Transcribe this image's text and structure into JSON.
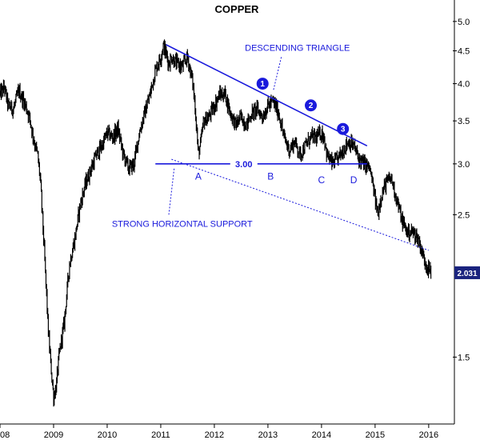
{
  "chart_data": {
    "type": "line",
    "title": "COPPER",
    "y_scale": "log",
    "ylim": [
      1.18,
      5.4
    ],
    "xlim": [
      2008.0,
      2016.45
    ],
    "y_ticks": [
      "5.0",
      "4.5",
      "4.0",
      "3.5",
      "3.0",
      "2.5",
      "1.5"
    ],
    "x_ticks": [
      "08",
      "2009",
      "2010",
      "2011",
      "2012",
      "2013",
      "2014",
      "2015",
      "2016"
    ],
    "x_tick_values": [
      2008.0,
      2009.0,
      2010.0,
      2011.0,
      2012.0,
      2013.0,
      2014.0,
      2015.0,
      2016.0
    ],
    "y_tick_values": [
      5.0,
      4.5,
      4.0,
      3.5,
      3.0,
      2.5,
      1.5
    ],
    "grid": false,
    "series": [
      {
        "color": "#000000",
        "x": [
          2008.0,
          2008.08,
          2008.15,
          2008.25,
          2008.35,
          2008.45,
          2008.55,
          2008.62,
          2008.7,
          2008.75,
          2008.8,
          2008.85,
          2008.9,
          2008.95,
          2009.0,
          2009.05,
          2009.1,
          2009.15,
          2009.2,
          2009.3,
          2009.4,
          2009.5,
          2009.6,
          2009.7,
          2009.8,
          2009.9,
          2010.0,
          2010.1,
          2010.2,
          2010.3,
          2010.4,
          2010.5,
          2010.6,
          2010.7,
          2010.8,
          2010.9,
          2011.0,
          2011.05,
          2011.1,
          2011.15,
          2011.2,
          2011.3,
          2011.4,
          2011.5,
          2011.55,
          2011.6,
          2011.65,
          2011.7,
          2011.75,
          2011.8,
          2011.9,
          2012.0,
          2012.1,
          2012.2,
          2012.3,
          2012.4,
          2012.5,
          2012.6,
          2012.7,
          2012.8,
          2012.9,
          2013.0,
          2013.1,
          2013.2,
          2013.3,
          2013.4,
          2013.5,
          2013.6,
          2013.7,
          2013.8,
          2013.9,
          2014.0,
          2014.05,
          2014.1,
          2014.2,
          2014.3,
          2014.4,
          2014.5,
          2014.6,
          2014.7,
          2014.8,
          2014.9,
          2015.0,
          2015.05,
          2015.1,
          2015.2,
          2015.3,
          2015.4,
          2015.5,
          2015.6,
          2015.7,
          2015.8,
          2015.9,
          2016.0,
          2016.05
        ],
        "y": [
          3.85,
          3.95,
          3.7,
          3.65,
          3.9,
          3.75,
          3.55,
          3.3,
          3.1,
          2.85,
          2.4,
          2.0,
          1.65,
          1.45,
          1.3,
          1.35,
          1.5,
          1.6,
          1.7,
          2.1,
          2.3,
          2.6,
          2.8,
          2.95,
          3.1,
          3.2,
          3.35,
          3.3,
          3.4,
          3.1,
          2.95,
          3.0,
          3.35,
          3.6,
          3.85,
          4.2,
          4.4,
          4.6,
          4.45,
          4.3,
          4.4,
          4.3,
          4.25,
          4.4,
          4.2,
          4.0,
          3.6,
          3.1,
          3.25,
          3.5,
          3.55,
          3.7,
          3.85,
          3.85,
          3.6,
          3.45,
          3.55,
          3.45,
          3.6,
          3.65,
          3.55,
          3.7,
          3.75,
          3.6,
          3.3,
          3.15,
          3.25,
          3.1,
          3.2,
          3.3,
          3.3,
          3.35,
          3.3,
          3.1,
          3.0,
          3.05,
          3.15,
          3.25,
          3.2,
          3.05,
          3.0,
          2.95,
          2.65,
          2.5,
          2.65,
          2.8,
          2.85,
          2.65,
          2.45,
          2.35,
          2.35,
          2.3,
          2.15,
          2.05,
          2.03
        ]
      }
    ],
    "last_value_label": "2.031",
    "annotations": [
      {
        "text": "DESCENDING TRIANGLE",
        "x": 2013.55,
        "y": 4.55
      },
      {
        "text": "STRONG HORIZONTAL SUPPORT",
        "x": 2011.4,
        "y": 2.42
      },
      {
        "text": "3.00",
        "x": 2012.55,
        "y": 3.0
      },
      {
        "text": "A",
        "x": 2011.7,
        "y": 2.87
      },
      {
        "text": "B",
        "x": 2013.05,
        "y": 2.87
      },
      {
        "text": "C",
        "x": 2014.0,
        "y": 2.83
      },
      {
        "text": "D",
        "x": 2014.6,
        "y": 2.83
      }
    ],
    "numbered_markers": [
      {
        "label": "1",
        "x": 2012.9,
        "y": 4.0
      },
      {
        "label": "2",
        "x": 2013.8,
        "y": 3.7
      },
      {
        "label": "3",
        "x": 2014.4,
        "y": 3.4
      }
    ],
    "lines": [
      {
        "name": "descending-trendline",
        "style": "solid",
        "x": [
          2011.1,
          2014.85
        ],
        "y": [
          4.6,
          3.2
        ]
      },
      {
        "name": "support-line-3",
        "style": "solid",
        "x": [
          2010.9,
          2014.85
        ],
        "y": [
          3.0,
          3.0
        ]
      },
      {
        "name": "dotted-lower-line",
        "style": "dotted",
        "x": [
          2011.2,
          2016.0
        ],
        "y": [
          3.05,
          2.2
        ]
      },
      {
        "name": "dotted-pointer-triangle",
        "style": "dotted",
        "x": [
          2013.25,
          2013.1
        ],
        "y": [
          4.4,
          3.9
        ]
      },
      {
        "name": "dotted-pointer-support",
        "style": "dotted",
        "x": [
          2011.15,
          2011.25
        ],
        "y": [
          2.5,
          2.95
        ]
      }
    ]
  }
}
